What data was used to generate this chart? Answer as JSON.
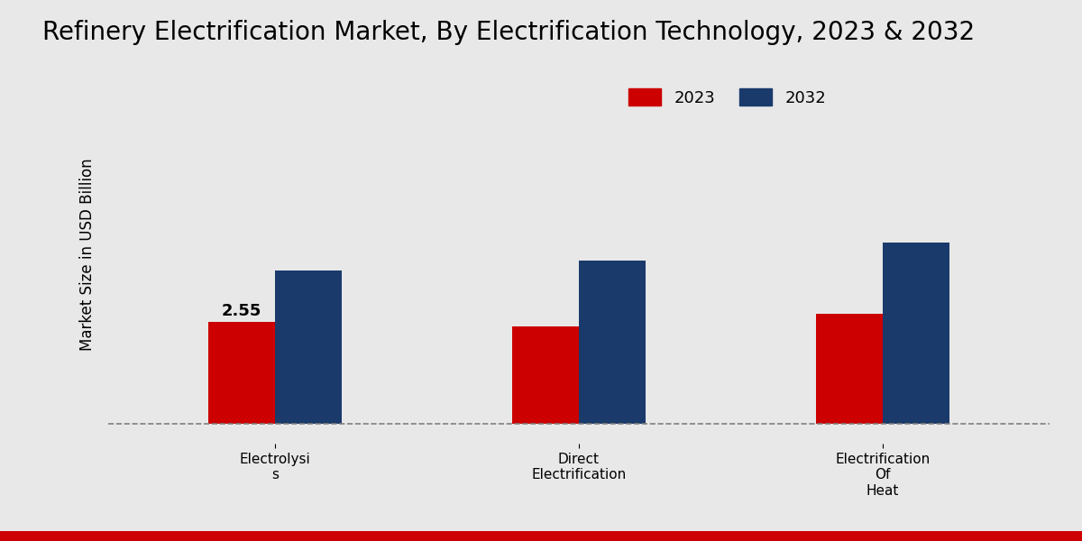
{
  "title": "Refinery Electrification Market, By Electrification Technology, 2023 & 2032",
  "ylabel": "Market Size in USD Billion",
  "categories": [
    "Electrolysi\ns",
    "Direct\nElectrification",
    "Electrification\nOf\nHeat"
  ],
  "values_2023": [
    2.55,
    2.45,
    2.75
  ],
  "values_2032": [
    3.85,
    4.1,
    4.55
  ],
  "bar_color_2023": "#CC0000",
  "bar_color_2032": "#1A3A6B",
  "background_color": "#E8E8E8",
  "bar_width": 0.22,
  "annotation_value": "2.55",
  "annotation_category_idx": 0,
  "dashed_line_y": 0,
  "legend_labels": [
    "2023",
    "2032"
  ],
  "title_fontsize": 20,
  "axis_label_fontsize": 12,
  "tick_label_fontsize": 11,
  "legend_fontsize": 13,
  "annotation_fontsize": 13,
  "ylim_max": 9.0,
  "xlim_left": -0.55,
  "xlim_right": 2.55
}
